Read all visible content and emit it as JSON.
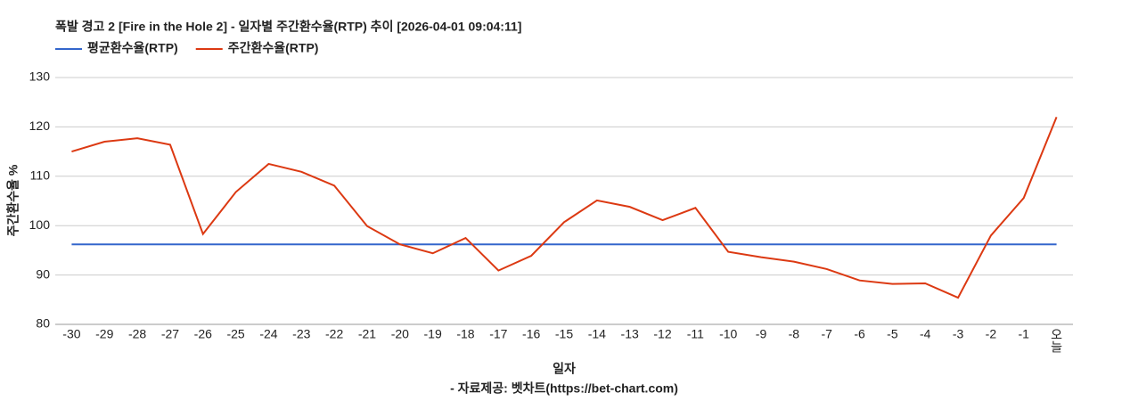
{
  "chart_data": {
    "type": "line",
    "title": "폭발 경고 2 [Fire in the Hole 2] - 일자별 주간환수율(RTP) 추이 [2026-04-01 09:04:11]",
    "x_label": "일자",
    "y_label": "주간환수율 %",
    "source": "- 자료제공: 벳차트(https://bet-chart.com)",
    "categories": [
      "-30",
      "-29",
      "-28",
      "-27",
      "-26",
      "-25",
      "-24",
      "-23",
      "-22",
      "-21",
      "-20",
      "-19",
      "-18",
      "-17",
      "-16",
      "-15",
      "-14",
      "-13",
      "-12",
      "-11",
      "-10",
      "-9",
      "-8",
      "-7",
      "-6",
      "-5",
      "-4",
      "-3",
      "-2",
      "-1",
      "오늘"
    ],
    "series": [
      {
        "name": "평균환수율(RTP)",
        "color": "#3366cc",
        "values": [
          96.2,
          96.2,
          96.2,
          96.2,
          96.2,
          96.2,
          96.2,
          96.2,
          96.2,
          96.2,
          96.2,
          96.2,
          96.2,
          96.2,
          96.2,
          96.2,
          96.2,
          96.2,
          96.2,
          96.2,
          96.2,
          96.2,
          96.2,
          96.2,
          96.2,
          96.2,
          96.2,
          96.2,
          96.2,
          96.2,
          96.2
        ]
      },
      {
        "name": "주간환수율(RTP)",
        "color": "#dc3912",
        "values": [
          115,
          117,
          117.7,
          116.4,
          98.3,
          106.8,
          112.5,
          110.9,
          108.1,
          99.9,
          96.2,
          94.4,
          97.5,
          90.9,
          93.9,
          100.7,
          105.1,
          103.8,
          101.1,
          103.6,
          94.7,
          93.6,
          92.7,
          91.2,
          88.9,
          88.2,
          88.3,
          85.4,
          98,
          105.6,
          122
        ]
      }
    ],
    "ylim": [
      80,
      130
    ],
    "yticks": [
      80,
      90,
      100,
      110,
      120,
      130
    ],
    "grid": true,
    "legend": "top-left"
  }
}
